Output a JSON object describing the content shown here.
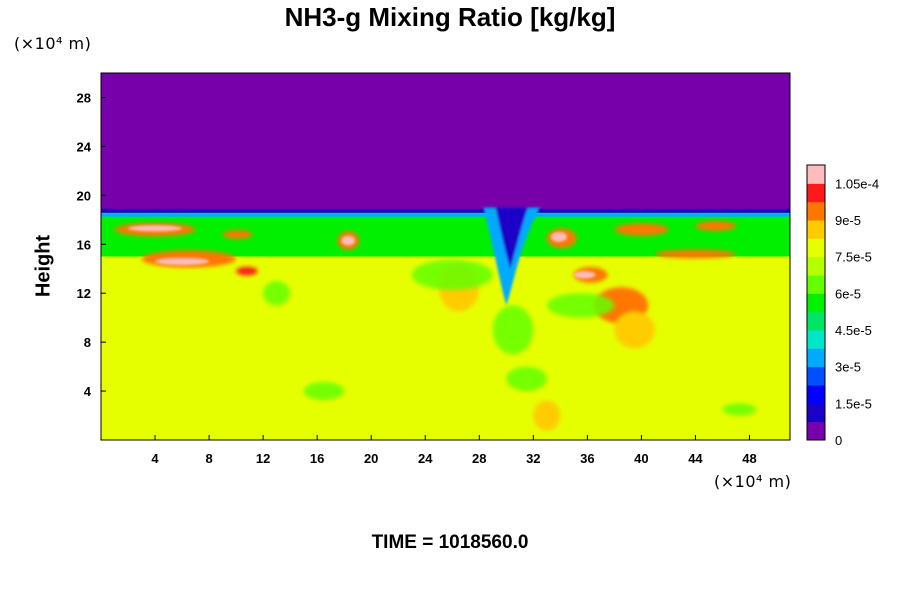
{
  "chart_data": {
    "type": "heatmap",
    "title": "NH3-g Mixing Ratio [kg/kg]",
    "xlabel": "",
    "ylabel": "Height",
    "x_unit": "(×10⁴ m)",
    "y_unit": "(×10⁴ m)",
    "xlim": [
      0,
      51
    ],
    "ylim": [
      0,
      30
    ],
    "x_ticks": [
      4,
      8,
      12,
      16,
      20,
      24,
      28,
      32,
      36,
      40,
      44,
      48
    ],
    "y_ticks": [
      4,
      8,
      12,
      16,
      20,
      24,
      28
    ],
    "colorbar": {
      "min": 0,
      "max": 0.0001125,
      "levels": 15,
      "tick_labels": [
        "0",
        "1.5e-5",
        "3e-5",
        "4.5e-5",
        "6e-5",
        "7.5e-5",
        "9e-5",
        "1.05e-4"
      ],
      "tick_values": [
        0,
        1.5e-05,
        3e-05,
        4.5e-05,
        6e-05,
        7.5e-05,
        9e-05,
        0.000105
      ],
      "colors": [
        "#7700aa",
        "#1a00c8",
        "#0000ff",
        "#0050ff",
        "#00aaff",
        "#00e6c8",
        "#00e664",
        "#00f000",
        "#64ff00",
        "#b4ff00",
        "#e6ff00",
        "#ffcc00",
        "#ff7700",
        "#ff1a1a",
        "#ffbcbc"
      ]
    },
    "field_description_regions": [
      {
        "region": "upper layer",
        "y_range": [
          18.5,
          30
        ],
        "value": 0
      },
      {
        "region": "mid layer",
        "y_range": [
          15,
          18.5
        ],
        "value": 5e-05
      },
      {
        "region": "lower layer",
        "y_range": [
          0,
          15
        ],
        "value": 7.5e-05
      }
    ]
  },
  "footer": {
    "time_label": "TIME = 1018560.0"
  },
  "colors": {
    "background": "#ffffff",
    "upper_purple": "#7700aa",
    "lower_yellow": "#e6ff00"
  }
}
